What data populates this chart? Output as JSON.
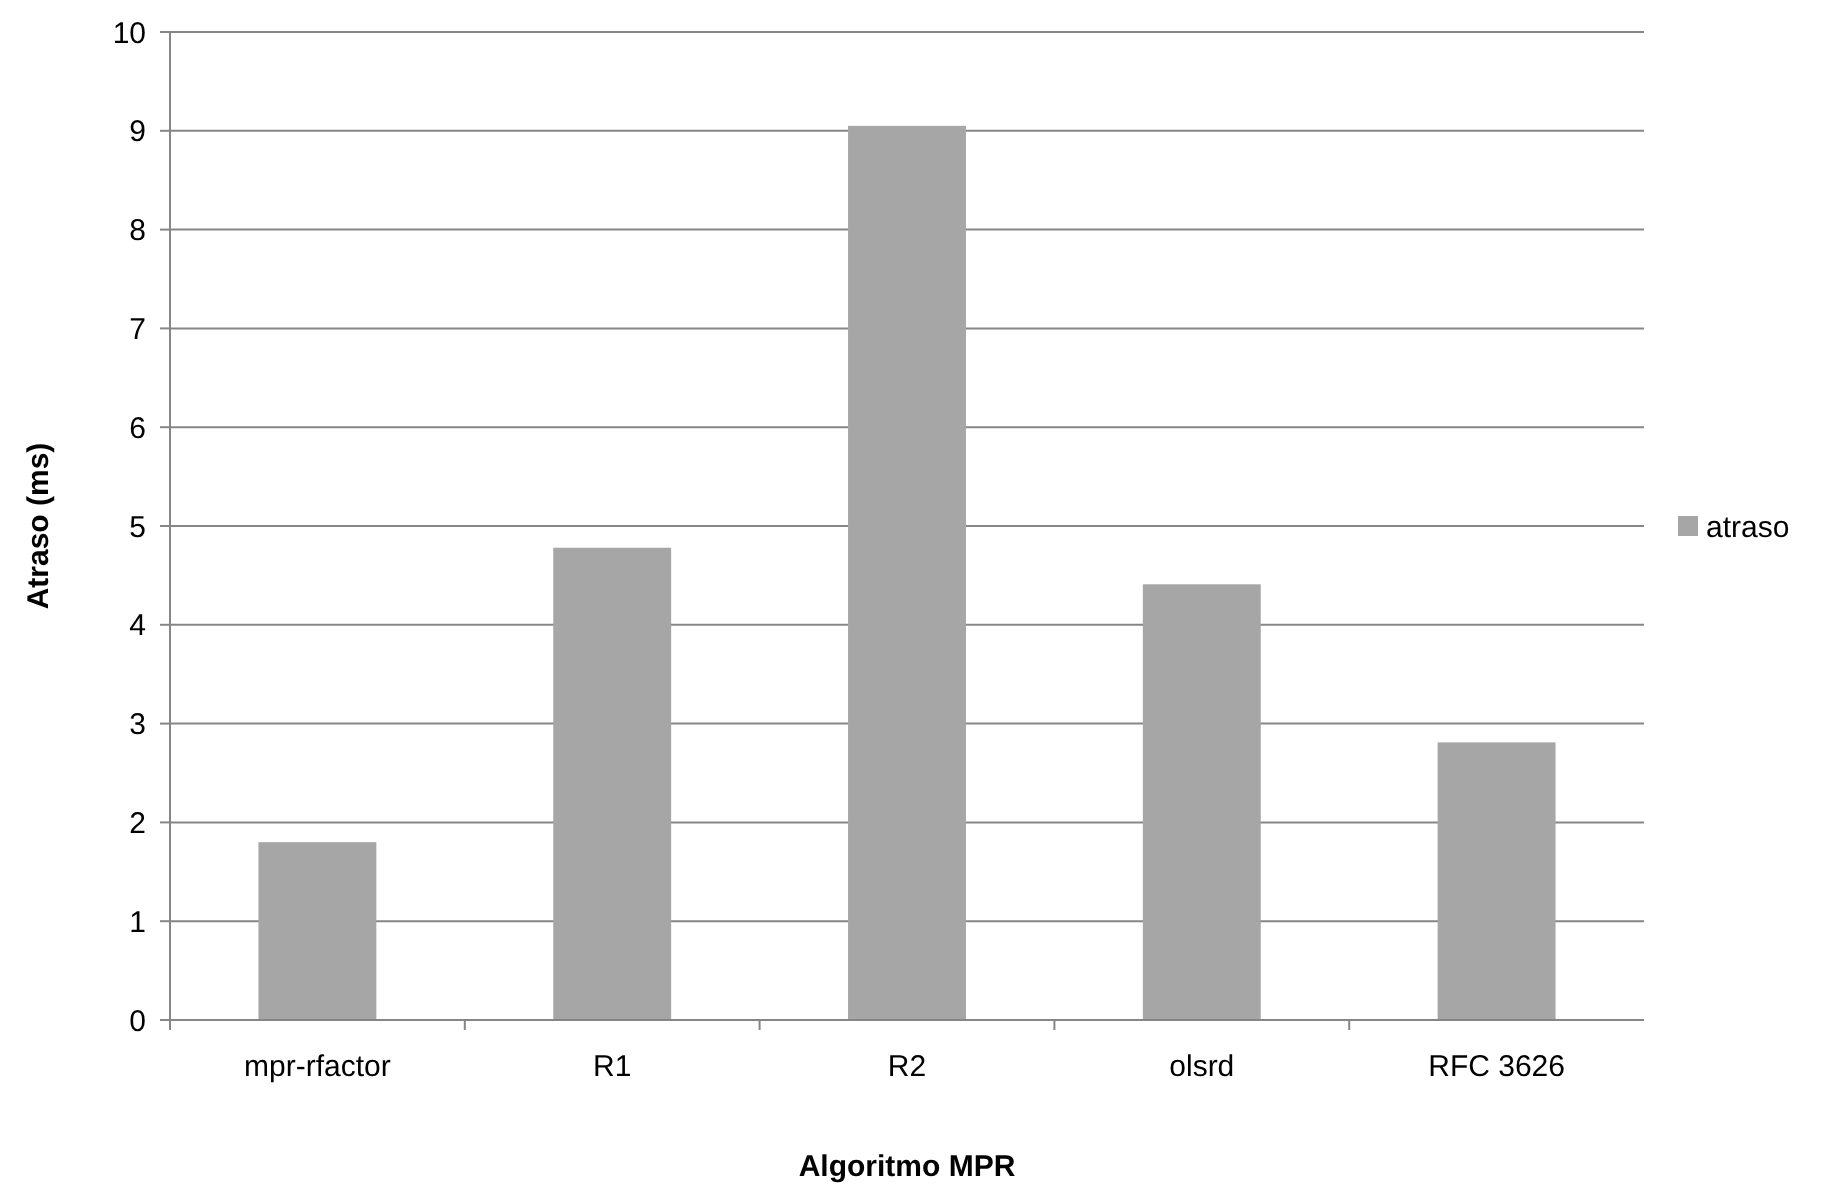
{
  "chart_data": {
    "type": "bar",
    "xlabel": "Algoritmo MPR",
    "ylabel": "Atraso (ms)",
    "categories": [
      "mpr-rfactor",
      "R1",
      "R2",
      "olsrd",
      "RFC 3626"
    ],
    "series": [
      {
        "name": "atraso",
        "color": "#a6a6a6",
        "values": [
          1.8,
          4.78,
          9.05,
          4.41,
          2.81
        ]
      }
    ],
    "ylim": [
      0,
      10
    ],
    "yticks": [
      0,
      1,
      2,
      3,
      4,
      5,
      6,
      7,
      8,
      9,
      10
    ],
    "grid": "y",
    "legend": "right"
  }
}
